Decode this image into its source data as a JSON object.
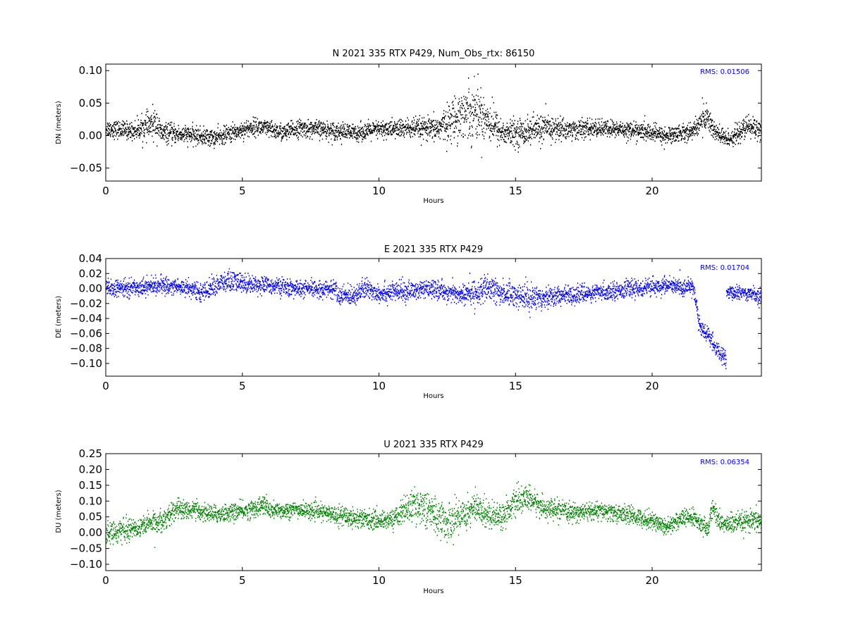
{
  "chart_data": [
    {
      "type": "scatter",
      "title": "N 2021 335 RTX  P429, Num_Obs_rtx: 86150",
      "xlabel": "Hours",
      "ylabel": "DN (meters)",
      "xlim": [
        0,
        24
      ],
      "ylim": [
        -0.07,
        0.11
      ],
      "xticks": [
        0,
        5,
        10,
        15,
        20
      ],
      "xtick_labels": [
        "0",
        "5",
        "10",
        "15",
        "20"
      ],
      "yticks": [
        -0.05,
        0.0,
        0.05,
        0.1
      ],
      "ytick_labels": [
        "−0.05",
        "0.00",
        "0.05",
        "0.10"
      ],
      "series": [
        {
          "color": "#000000",
          "x": [
            0,
            1,
            1.85,
            2,
            3,
            4,
            5,
            5.5,
            6,
            6.5,
            7,
            8,
            9,
            10,
            11,
            12,
            12.5,
            13,
            13.5,
            14,
            14.5,
            15,
            16,
            17,
            18,
            19,
            20,
            20.5,
            21,
            21.5,
            21.8,
            22,
            22.3,
            22.7,
            23,
            23.5,
            24
          ],
          "y": [
            0.012,
            0.008,
            0.02,
            0.005,
            0.002,
            -0.003,
            0.01,
            0.015,
            0.01,
            0.005,
            0.012,
            0.01,
            0.005,
            0.01,
            0.012,
            0.01,
            0.02,
            0.035,
            0.04,
            0.025,
            0.005,
            0.005,
            0.012,
            0.01,
            0.012,
            0.01,
            0.005,
            0.0,
            0.005,
            0.008,
            0.025,
            0.03,
            0.005,
            -0.005,
            0.0,
            0.015,
            0.01
          ],
          "spread": [
            0.012,
            0.012,
            0.022,
            0.014,
            0.012,
            0.012,
            0.012,
            0.012,
            0.012,
            0.012,
            0.012,
            0.012,
            0.012,
            0.012,
            0.014,
            0.016,
            0.024,
            0.035,
            0.04,
            0.03,
            0.018,
            0.018,
            0.02,
            0.014,
            0.012,
            0.012,
            0.012,
            0.012,
            0.012,
            0.012,
            0.018,
            0.02,
            0.015,
            0.012,
            0.012,
            0.016,
            0.015
          ]
        }
      ],
      "annotation": "RMS:  0.01506",
      "annotation_color": "#0000ff"
    },
    {
      "type": "scatter",
      "title": "E 2021 335 RTX  P429",
      "xlabel": "Hours",
      "ylabel": "DE (meters)",
      "xlim": [
        0,
        24
      ],
      "ylim": [
        -0.117,
        0.04
      ],
      "xticks": [
        0,
        5,
        10,
        15,
        20
      ],
      "xtick_labels": [
        "0",
        "5",
        "10",
        "15",
        "20"
      ],
      "yticks": [
        -0.1,
        -0.08,
        -0.06,
        -0.04,
        -0.02,
        0.0,
        0.02,
        0.04
      ],
      "ytick_labels": [
        "−0.10",
        "−0.08",
        "−0.06",
        "−0.04",
        "−0.02",
        "0.00",
        "0.02",
        "0.04"
      ],
      "series": [
        {
          "color": "#0000ff",
          "x": [
            0,
            1,
            2,
            3,
            3.5,
            4,
            4.5,
            5,
            5.5,
            6,
            7,
            8,
            8.4,
            8.5,
            9,
            9.5,
            10,
            11,
            12,
            13,
            13.5,
            14,
            14.5,
            15,
            15.5,
            16,
            17,
            18,
            19,
            20,
            20.5,
            21,
            21.5,
            21.6,
            21.7,
            21.8,
            22,
            22.2,
            22.4,
            22.6,
            22.7
          ],
          "y": [
            0.0,
            0.002,
            0.005,
            0.002,
            -0.005,
            0.005,
            0.01,
            0.008,
            0.006,
            0.005,
            0.0,
            0.0,
            0.0,
            -0.01,
            -0.008,
            0.0,
            -0.005,
            -0.003,
            0.0,
            -0.008,
            -0.005,
            0.0,
            -0.005,
            -0.008,
            -0.012,
            -0.01,
            -0.008,
            -0.005,
            0.0,
            0.002,
            0.005,
            0.002,
            0.003,
            -0.02,
            -0.045,
            -0.055,
            -0.06,
            -0.07,
            -0.085,
            -0.09,
            -0.095
          ],
          "spread": [
            0.01,
            0.01,
            0.01,
            0.01,
            0.01,
            0.012,
            0.014,
            0.012,
            0.01,
            0.01,
            0.01,
            0.01,
            0.01,
            0.012,
            0.012,
            0.012,
            0.012,
            0.012,
            0.01,
            0.012,
            0.015,
            0.016,
            0.015,
            0.014,
            0.016,
            0.014,
            0.01,
            0.01,
            0.01,
            0.01,
            0.01,
            0.01,
            0.01,
            0.012,
            0.01,
            0.01,
            0.01,
            0.01,
            0.01,
            0.01,
            0.01
          ]
        },
        {
          "color": "#0000ff",
          "x": [
            22.7,
            23,
            23.5,
            24
          ],
          "y": [
            -0.005,
            -0.005,
            -0.005,
            -0.01
          ],
          "spread": [
            0.008,
            0.008,
            0.008,
            0.012
          ]
        }
      ],
      "annotation": "RMS:  0.01704",
      "annotation_color": "#0000ff"
    },
    {
      "type": "scatter",
      "title": "U 2021 335 RTX  P429",
      "xlabel": "Hours",
      "ylabel": "DU (meters)",
      "xlim": [
        0,
        24
      ],
      "ylim": [
        -0.12,
        0.25
      ],
      "xticks": [
        0,
        5,
        10,
        15,
        20
      ],
      "xtick_labels": [
        "0",
        "5",
        "10",
        "15",
        "20"
      ],
      "yticks": [
        -0.1,
        -0.05,
        0.0,
        0.05,
        0.1,
        0.15,
        0.2,
        0.25
      ],
      "ytick_labels": [
        "−0.10",
        "−0.05",
        "0.00",
        "0.05",
        "0.10",
        "0.15",
        "0.20",
        "0.25"
      ],
      "series": [
        {
          "color": "#008000",
          "x": [
            0,
            1,
            2,
            2.7,
            3,
            4,
            5,
            5.5,
            5.8,
            6,
            7,
            8,
            9,
            10,
            10.5,
            11,
            11.5,
            12,
            12.5,
            13,
            13.5,
            14,
            14.5,
            15,
            15.5,
            16,
            17,
            18,
            19,
            20,
            20.5,
            21,
            21.5,
            22,
            22.2,
            22.5,
            23,
            24
          ],
          "y": [
            0.0,
            0.015,
            0.04,
            0.08,
            0.075,
            0.06,
            0.07,
            0.08,
            0.09,
            0.07,
            0.075,
            0.065,
            0.05,
            0.04,
            0.045,
            0.08,
            0.09,
            0.06,
            0.03,
            0.06,
            0.08,
            0.06,
            0.055,
            0.1,
            0.11,
            0.08,
            0.065,
            0.07,
            0.06,
            0.04,
            0.02,
            0.045,
            0.05,
            0.01,
            0.08,
            0.03,
            0.03,
            0.04
          ],
          "spread": [
            0.03,
            0.03,
            0.03,
            0.03,
            0.025,
            0.025,
            0.025,
            0.025,
            0.03,
            0.025,
            0.022,
            0.022,
            0.03,
            0.025,
            0.025,
            0.04,
            0.05,
            0.055,
            0.05,
            0.05,
            0.045,
            0.04,
            0.035,
            0.035,
            0.035,
            0.03,
            0.025,
            0.025,
            0.025,
            0.025,
            0.025,
            0.025,
            0.025,
            0.025,
            0.03,
            0.025,
            0.03,
            0.03
          ]
        }
      ],
      "annotation": "RMS:  0.06354",
      "annotation_color": "#0000ff"
    }
  ]
}
